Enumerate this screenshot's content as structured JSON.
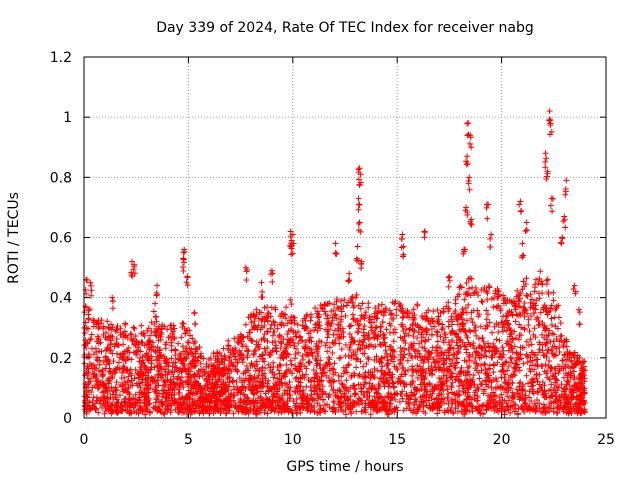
{
  "chart_data": {
    "type": "scatter",
    "title": "Day 339 of 2024, Rate Of TEC Index for receiver nabg",
    "xlabel": "GPS time / hours",
    "ylabel": "ROTI / TECUs",
    "xlim": [
      0,
      25
    ],
    "ylim": [
      0,
      1.2
    ],
    "x_ticks": [
      0,
      5,
      10,
      15,
      20,
      25
    ],
    "x_tick_labels": [
      "0",
      "5",
      "10",
      "15",
      "20",
      "25"
    ],
    "y_ticks": [
      0,
      0.2,
      0.4,
      0.6,
      0.8,
      1,
      1.2
    ],
    "y_tick_labels": [
      "0",
      "0.2",
      "0.4",
      "0.6",
      "0.8",
      "1",
      "1.2"
    ],
    "grid": true,
    "marker": "+",
    "marker_color": "#ff0000",
    "envelope": [
      {
        "x": 0.0,
        "y_max": 0.38
      },
      {
        "x": 0.5,
        "y_max": 0.35
      },
      {
        "x": 1.0,
        "y_max": 0.32
      },
      {
        "x": 1.5,
        "y_max": 0.3
      },
      {
        "x": 2.0,
        "y_max": 0.32
      },
      {
        "x": 2.5,
        "y_max": 0.32
      },
      {
        "x": 3.0,
        "y_max": 0.3
      },
      {
        "x": 3.5,
        "y_max": 0.32
      },
      {
        "x": 4.0,
        "y_max": 0.3
      },
      {
        "x": 4.5,
        "y_max": 0.33
      },
      {
        "x": 5.0,
        "y_max": 0.3
      },
      {
        "x": 5.5,
        "y_max": 0.24
      },
      {
        "x": 6.0,
        "y_max": 0.2
      },
      {
        "x": 6.5,
        "y_max": 0.22
      },
      {
        "x": 7.0,
        "y_max": 0.26
      },
      {
        "x": 7.5,
        "y_max": 0.3
      },
      {
        "x": 8.0,
        "y_max": 0.35
      },
      {
        "x": 8.5,
        "y_max": 0.36
      },
      {
        "x": 9.0,
        "y_max": 0.37
      },
      {
        "x": 9.5,
        "y_max": 0.36
      },
      {
        "x": 10.0,
        "y_max": 0.4
      },
      {
        "x": 10.5,
        "y_max": 0.36
      },
      {
        "x": 11.0,
        "y_max": 0.36
      },
      {
        "x": 11.5,
        "y_max": 0.38
      },
      {
        "x": 12.0,
        "y_max": 0.4
      },
      {
        "x": 12.5,
        "y_max": 0.4
      },
      {
        "x": 13.0,
        "y_max": 0.42
      },
      {
        "x": 13.5,
        "y_max": 0.4
      },
      {
        "x": 14.0,
        "y_max": 0.37
      },
      {
        "x": 14.5,
        "y_max": 0.4
      },
      {
        "x": 15.0,
        "y_max": 0.4
      },
      {
        "x": 15.5,
        "y_max": 0.38
      },
      {
        "x": 16.0,
        "y_max": 0.38
      },
      {
        "x": 16.5,
        "y_max": 0.36
      },
      {
        "x": 17.0,
        "y_max": 0.36
      },
      {
        "x": 17.5,
        "y_max": 0.38
      },
      {
        "x": 18.0,
        "y_max": 0.44
      },
      {
        "x": 18.5,
        "y_max": 0.48
      },
      {
        "x": 19.0,
        "y_max": 0.46
      },
      {
        "x": 19.5,
        "y_max": 0.44
      },
      {
        "x": 20.0,
        "y_max": 0.42
      },
      {
        "x": 20.5,
        "y_max": 0.4
      },
      {
        "x": 21.0,
        "y_max": 0.46
      },
      {
        "x": 21.5,
        "y_max": 0.45
      },
      {
        "x": 22.0,
        "y_max": 0.5
      },
      {
        "x": 22.5,
        "y_max": 0.42
      },
      {
        "x": 23.0,
        "y_max": 0.3
      },
      {
        "x": 23.5,
        "y_max": 0.22
      },
      {
        "x": 24.0,
        "y_max": 0.18
      }
    ],
    "outliers": [
      {
        "x": 0.1,
        "y": 0.46
      },
      {
        "x": 0.3,
        "y": 0.45
      },
      {
        "x": 1.35,
        "y": 0.4
      },
      {
        "x": 2.3,
        "y": 0.52
      },
      {
        "x": 2.4,
        "y": 0.51
      },
      {
        "x": 3.5,
        "y": 0.44
      },
      {
        "x": 3.4,
        "y": 0.38
      },
      {
        "x": 4.8,
        "y": 0.56
      },
      {
        "x": 4.75,
        "y": 0.53
      },
      {
        "x": 4.95,
        "y": 0.47
      },
      {
        "x": 5.3,
        "y": 0.35
      },
      {
        "x": 7.75,
        "y": 0.5
      },
      {
        "x": 8.5,
        "y": 0.45
      },
      {
        "x": 9.0,
        "y": 0.49
      },
      {
        "x": 9.9,
        "y": 0.62
      },
      {
        "x": 10.0,
        "y": 0.61
      },
      {
        "x": 9.95,
        "y": 0.59
      },
      {
        "x": 12.05,
        "y": 0.58
      },
      {
        "x": 12.7,
        "y": 0.48
      },
      {
        "x": 13.2,
        "y": 0.83
      },
      {
        "x": 13.25,
        "y": 0.81
      },
      {
        "x": 13.15,
        "y": 0.73
      },
      {
        "x": 13.2,
        "y": 0.65
      },
      {
        "x": 13.1,
        "y": 0.57
      },
      {
        "x": 13.3,
        "y": 0.52
      },
      {
        "x": 15.25,
        "y": 0.61
      },
      {
        "x": 15.3,
        "y": 0.57
      },
      {
        "x": 16.3,
        "y": 0.62
      },
      {
        "x": 17.5,
        "y": 0.47
      },
      {
        "x": 18.4,
        "y": 0.98
      },
      {
        "x": 18.5,
        "y": 0.94
      },
      {
        "x": 18.35,
        "y": 0.87
      },
      {
        "x": 18.45,
        "y": 0.8
      },
      {
        "x": 18.3,
        "y": 0.7
      },
      {
        "x": 18.55,
        "y": 0.66
      },
      {
        "x": 18.2,
        "y": 0.56
      },
      {
        "x": 19.3,
        "y": 0.71
      },
      {
        "x": 19.5,
        "y": 0.61
      },
      {
        "x": 20.9,
        "y": 0.72
      },
      {
        "x": 21.2,
        "y": 0.65
      },
      {
        "x": 21.0,
        "y": 0.58
      },
      {
        "x": 22.3,
        "y": 1.02
      },
      {
        "x": 22.35,
        "y": 0.99
      },
      {
        "x": 22.1,
        "y": 0.88
      },
      {
        "x": 22.2,
        "y": 0.82
      },
      {
        "x": 22.4,
        "y": 0.73
      },
      {
        "x": 23.1,
        "y": 0.79
      },
      {
        "x": 23.0,
        "y": 0.67
      },
      {
        "x": 22.9,
        "y": 0.6
      },
      {
        "x": 23.5,
        "y": 0.44
      },
      {
        "x": 23.7,
        "y": 0.36
      }
    ]
  }
}
